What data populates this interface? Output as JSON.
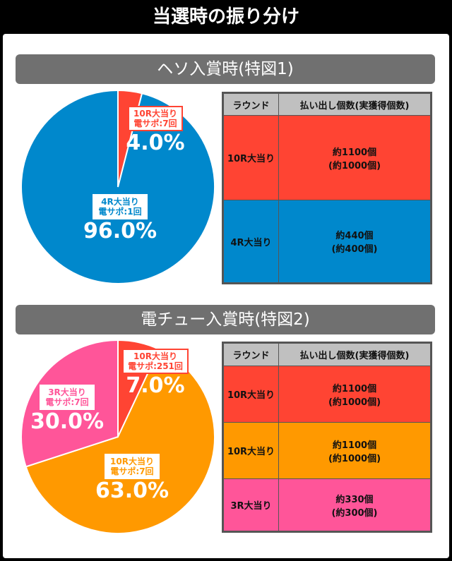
{
  "title": "当選時の振り分け",
  "colors": {
    "red": "#ff4433",
    "blue": "#0088cc",
    "orange": "#ff9900",
    "pink": "#ff5599"
  },
  "sections": [
    {
      "heading": "ヘソ入賞時(特図1)",
      "chart_data": {
        "type": "pie",
        "slices": [
          {
            "label": "10R大当り",
            "sub": "電サポ:7回",
            "pct_text": "4.0%",
            "value": 4.0,
            "color": "#ff4433"
          },
          {
            "label": "4R大当り",
            "sub": "電サポ:1回",
            "pct_text": "96.0%",
            "value": 96.0,
            "color": "#0088cc"
          }
        ]
      },
      "table": {
        "headers": [
          "ラウンド",
          "払い出し個数(実獲得個数)"
        ],
        "rows": [
          {
            "round": "10R大当り",
            "payout": "約1100個",
            "actual": "(約1000個)",
            "color": "#ff4433"
          },
          {
            "round": "4R大当り",
            "payout": "約440個",
            "actual": "(約400個)",
            "color": "#0088cc"
          }
        ]
      }
    },
    {
      "heading": "電チュー入賞時(特図2)",
      "chart_data": {
        "type": "pie",
        "slices": [
          {
            "label": "10R大当り",
            "sub": "電サポ:251回",
            "pct_text": "7.0%",
            "value": 7.0,
            "color": "#ff4433"
          },
          {
            "label": "10R大当り",
            "sub": "電サポ:7回",
            "pct_text": "63.0%",
            "value": 63.0,
            "color": "#ff9900"
          },
          {
            "label": "3R大当り",
            "sub": "電サポ:7回",
            "pct_text": "30.0%",
            "value": 30.0,
            "color": "#ff5599"
          }
        ]
      },
      "table": {
        "headers": [
          "ラウンド",
          "払い出し個数(実獲得個数)"
        ],
        "rows": [
          {
            "round": "10R大当り",
            "payout": "約1100個",
            "actual": "(約1000個)",
            "color": "#ff4433"
          },
          {
            "round": "10R大当り",
            "payout": "約1100個",
            "actual": "(約1000個)",
            "color": "#ff9900"
          },
          {
            "round": "3R大当り",
            "payout": "約330個",
            "actual": "(約300個)",
            "color": "#ff5599"
          }
        ]
      }
    }
  ]
}
